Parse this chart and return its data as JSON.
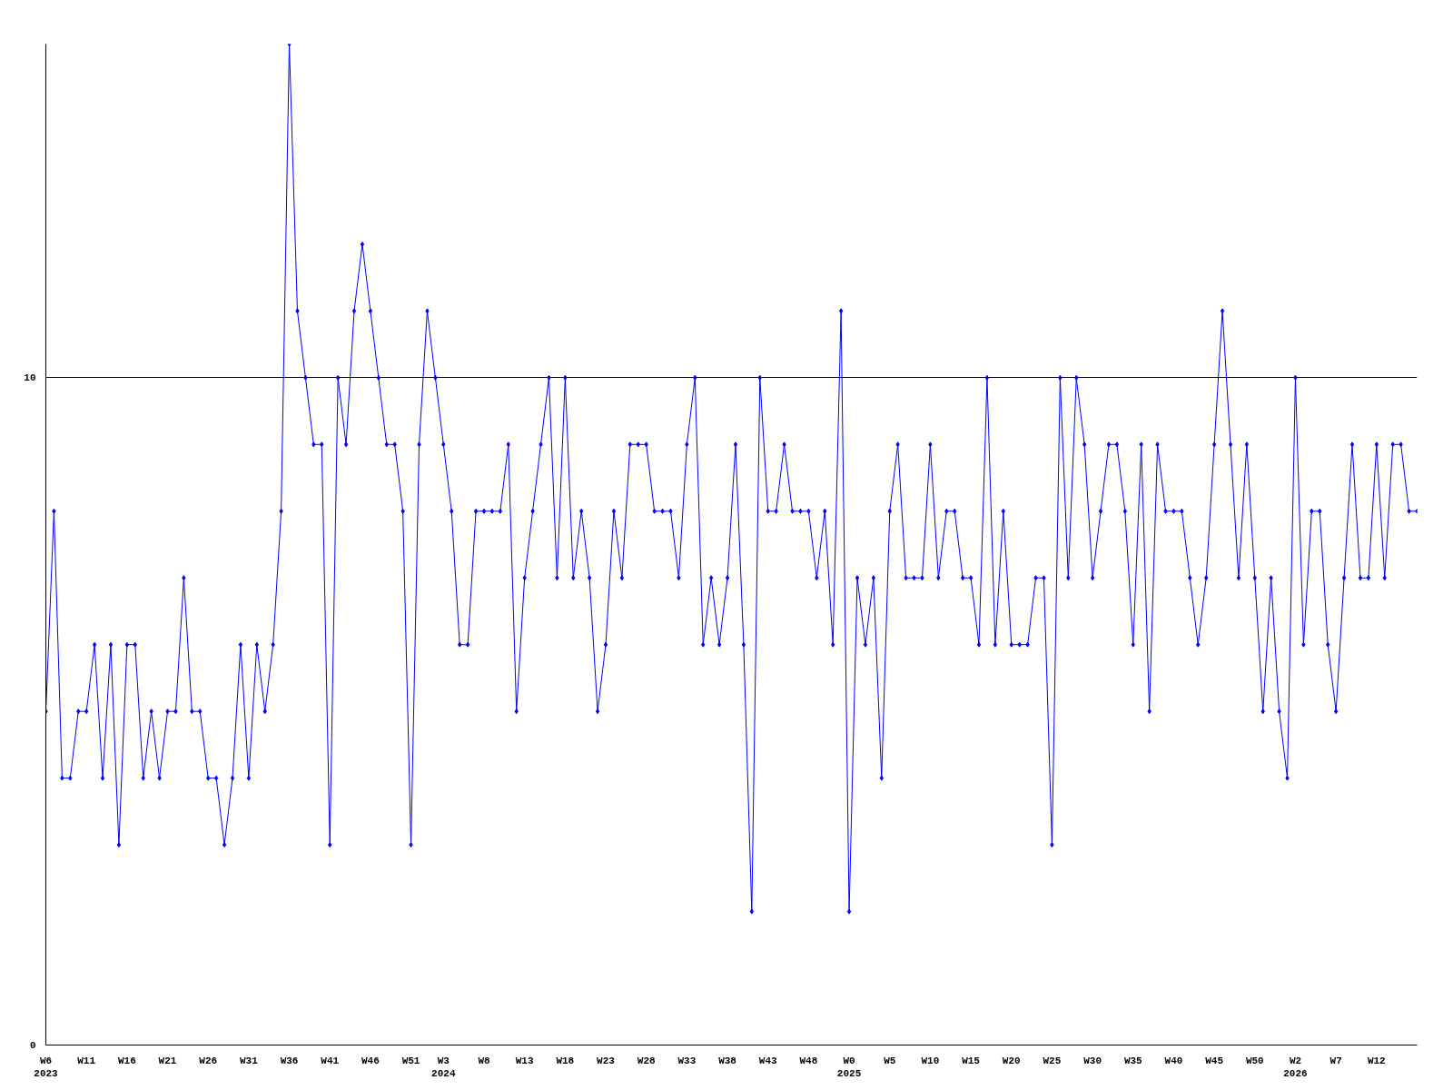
{
  "chart_data": {
    "type": "line",
    "categories": [
      "W6\n2023",
      null,
      null,
      null,
      null,
      "W11",
      null,
      null,
      null,
      null,
      "W16",
      null,
      null,
      null,
      null,
      "W21",
      null,
      null,
      null,
      null,
      "W26",
      null,
      null,
      null,
      null,
      "W31",
      null,
      null,
      null,
      null,
      "W36",
      null,
      null,
      null,
      null,
      "W41",
      null,
      null,
      null,
      null,
      "W46",
      null,
      null,
      null,
      null,
      "W51",
      null,
      null,
      null,
      "W3\n2024",
      null,
      null,
      null,
      null,
      "W8",
      null,
      null,
      null,
      null,
      "W13",
      null,
      null,
      null,
      null,
      "W18",
      null,
      null,
      null,
      null,
      "W23",
      null,
      null,
      null,
      null,
      "W28",
      null,
      null,
      null,
      null,
      "W33",
      null,
      null,
      null,
      null,
      "W38",
      null,
      null,
      null,
      null,
      "W43",
      null,
      null,
      null,
      null,
      "W48",
      null,
      null,
      null,
      null,
      "W0\n2025",
      null,
      null,
      null,
      null,
      "W5",
      null,
      null,
      null,
      null,
      "W10",
      null,
      null,
      null,
      null,
      "W15",
      null,
      null,
      null,
      null,
      "W20",
      null,
      null,
      null,
      null,
      "W25",
      null,
      null,
      null,
      null,
      "W30",
      null,
      null,
      null,
      null,
      "W35",
      null,
      null,
      null,
      null,
      "W40",
      null,
      null,
      null,
      null,
      "W45",
      null,
      null,
      null,
      null,
      "W50",
      null,
      null,
      null,
      null,
      "W2\n2026",
      null,
      null,
      null,
      null,
      "W7",
      null,
      null,
      null,
      null,
      "W12",
      null,
      null,
      null,
      null,
      null
    ],
    "series": [
      {
        "color": "#0000ff",
        "values": [
          5,
          8,
          4,
          4,
          5,
          5,
          6,
          4,
          6,
          3,
          6,
          6,
          4,
          5,
          4,
          5,
          5,
          7,
          5,
          5,
          4,
          4,
          3,
          4,
          6,
          4,
          6,
          5,
          6,
          8,
          15,
          11,
          10,
          9,
          9,
          3,
          10,
          9,
          11,
          12,
          11,
          10,
          9,
          9,
          8,
          3,
          9,
          11,
          10,
          9,
          8,
          6,
          6,
          8,
          8,
          8,
          8,
          9,
          5,
          7,
          8,
          9,
          10,
          7,
          10,
          7,
          8,
          7,
          5,
          6,
          8,
          7,
          9,
          9,
          9,
          8,
          8,
          8,
          7,
          9,
          10,
          6,
          7,
          6,
          7,
          9,
          6,
          2,
          10,
          8,
          8,
          9,
          8,
          8,
          8,
          7,
          8,
          6,
          11,
          2,
          7,
          6,
          7,
          4,
          8,
          9,
          7,
          7,
          7,
          9,
          7,
          8,
          8,
          7,
          7,
          6,
          10,
          6,
          8,
          6,
          6,
          6,
          7,
          7,
          3,
          10,
          7,
          10,
          9,
          7,
          8,
          9,
          9,
          8,
          6,
          9,
          5,
          9,
          8,
          8,
          8,
          7,
          6,
          7,
          9,
          11,
          9,
          7,
          9,
          7,
          5,
          7,
          5,
          4,
          10,
          6,
          8,
          8,
          6,
          5,
          7,
          9,
          7,
          7,
          9,
          7,
          9,
          9,
          8,
          8
        ]
      }
    ],
    "ylim": [
      0,
      15
    ],
    "yticks": [
      0,
      10
    ],
    "grid": "y",
    "marker": "diamond",
    "line_style": "solid"
  }
}
